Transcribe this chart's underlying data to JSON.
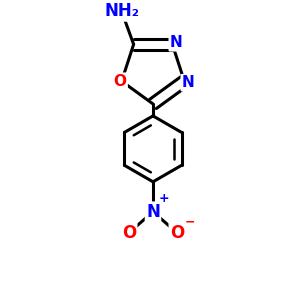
{
  "background_color": "#ffffff",
  "bond_color": "#000000",
  "bond_width": 2.2,
  "atom_colors": {
    "N": "#0000ff",
    "O": "#ff0000",
    "C": "#000000"
  },
  "font_size_ring": 11,
  "font_size_nh2": 12,
  "font_size_no2": 12,
  "font_size_charge": 9,
  "figsize": [
    3.0,
    3.0
  ],
  "dpi": 100,
  "xlim": [
    -0.7,
    0.7
  ],
  "ylim": [
    -1.1,
    0.85
  ]
}
